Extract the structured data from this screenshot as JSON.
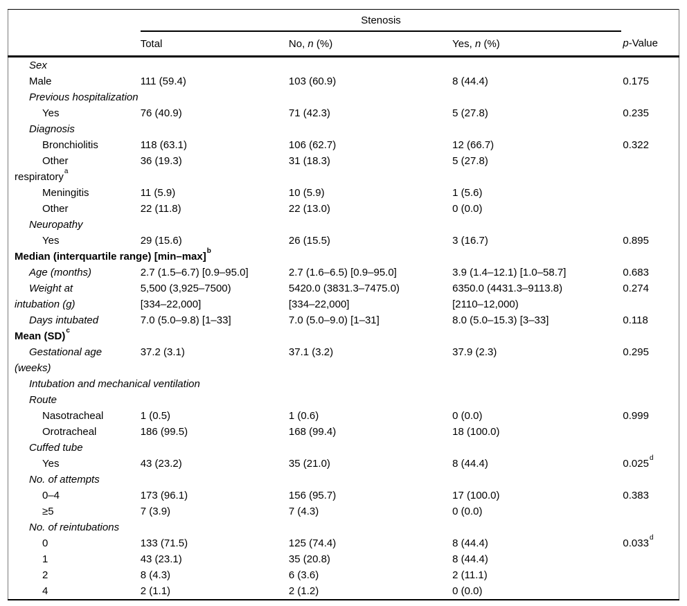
{
  "colors": {
    "background": "#ffffff",
    "text": "#000000",
    "rule": "#000000",
    "frame": "#7a7a7a"
  },
  "table": {
    "span_header": "Stenosis",
    "columns": {
      "total": "Total",
      "no_prefix": "No, ",
      "yes_prefix": "Yes, ",
      "n_var": "n",
      "pct_suffix": " (%)",
      "p_var": "p",
      "p_suffix": "-Value"
    },
    "rows": [
      {
        "label": "Sex",
        "style": "italic",
        "indent": 1
      },
      {
        "label": "Male",
        "indent": 1,
        "total": "111 (59.4)",
        "no": "103 (60.9)",
        "yes": "8 (44.4)",
        "p": "0.175"
      },
      {
        "label": "Previous hospitalization",
        "style": "italic",
        "indent": 1
      },
      {
        "label": "Yes",
        "indent": 2,
        "total": "76 (40.9)",
        "no": "71 (42.3)",
        "yes": "5 (27.8)",
        "p": "0.235"
      },
      {
        "label": "Diagnosis",
        "style": "italic",
        "indent": 1
      },
      {
        "label": "Bronchiolitis",
        "indent": 2,
        "total": "118 (63.1)",
        "no": "106 (62.7)",
        "yes": "12 (66.7)",
        "p": "0.322"
      },
      {
        "label": "Other",
        "label2": "respiratory",
        "label2_sup": "a",
        "indent": 2,
        "total": "36 (19.3)",
        "no": "31 (18.3)",
        "yes": "5 (27.8)"
      },
      {
        "label": "Meningitis",
        "indent": 2,
        "total": "11 (5.9)",
        "no": "10 (5.9)",
        "yes": "1 (5.6)"
      },
      {
        "label": "Other",
        "indent": 2,
        "total": "22 (11.8)",
        "no": "22 (13.0)",
        "yes": "0 (0.0)"
      },
      {
        "label": "Neuropathy",
        "style": "italic",
        "indent": 1
      },
      {
        "label": "Yes",
        "indent": 2,
        "total": "29 (15.6)",
        "no": "26 (15.5)",
        "yes": "3 (16.7)",
        "p": "0.895"
      },
      {
        "label": "Median (interquartile range) [min–max]",
        "label_sup": "b",
        "style": "bold",
        "indent": 0
      },
      {
        "label": "Age (months)",
        "style": "italic",
        "indent": 1,
        "total": "2.7 (1.5–6.7) [0.9–95.0]",
        "no": "2.7 (1.6–6.5) [0.9–95.0]",
        "yes": "3.9 (1.4–12.1) [1.0–58.7]",
        "p": "0.683"
      },
      {
        "label": "Weight at",
        "label2": "intubation (g)",
        "style": "italic",
        "indent": 1,
        "total": "5,500 (3,925–7500)",
        "total2": "[334–22,000]",
        "no": "5420.0 (3831.3–7475.0)",
        "no2": "[334–22,000]",
        "yes": "6350.0 (4431.3–9113.8)",
        "yes2": "[2110–12,000)",
        "p": "0.274"
      },
      {
        "label": "Days intubated",
        "style": "italic",
        "indent": 1,
        "total": "7.0 (5.0–9.8) [1–33]",
        "no": "7.0 (5.0–9.0) [1–31]",
        "yes": "8.0 (5.0–15.3) [3–33]",
        "p": "0.118"
      },
      {
        "label": "Mean (SD)",
        "label_sup": "c",
        "style": "bold",
        "indent": 0
      },
      {
        "label": "Gestational age",
        "label2": "(weeks)",
        "style": "italic",
        "indent": 1,
        "total": "37.2 (3.1)",
        "no": "37.1 (3.2)",
        "yes": "37.9 (2.3)",
        "p": "0.295"
      },
      {
        "label": "Intubation and mechanical ventilation",
        "style": "italic",
        "indent": 1
      },
      {
        "label": "Route",
        "style": "italic",
        "indent": 1
      },
      {
        "label": "Nasotracheal",
        "indent": 2,
        "total": "1 (0.5)",
        "no": "1 (0.6)",
        "yes": "0 (0.0)",
        "p": "0.999"
      },
      {
        "label": "Orotracheal",
        "indent": 2,
        "total": "186 (99.5)",
        "no": "168 (99.4)",
        "yes": "18 (100.0)"
      },
      {
        "label": "Cuffed tube",
        "style": "italic",
        "indent": 1
      },
      {
        "label": "Yes",
        "indent": 2,
        "total": "43 (23.2)",
        "no": "35 (21.0)",
        "yes": "8 (44.4)",
        "p": "0.025",
        "p_sup": "d"
      },
      {
        "label": "No. of attempts",
        "style": "italic",
        "indent": 1
      },
      {
        "label": "0–4",
        "indent": 2,
        "total": "173 (96.1)",
        "no": "156 (95.7)",
        "yes": "17 (100.0)",
        "p": "0.383"
      },
      {
        "label": "≥5",
        "indent": 2,
        "total": "7 (3.9)",
        "no": "7 (4.3)",
        "yes": "0 (0.0)"
      },
      {
        "label": "No. of reintubations",
        "style": "italic",
        "indent": 1
      },
      {
        "label": "0",
        "indent": 2,
        "total": "133 (71.5)",
        "no": "125 (74.4)",
        "yes": "8 (44.4)",
        "p": "0.033",
        "p_sup": "d"
      },
      {
        "label": "1",
        "indent": 2,
        "total": "43 (23.1)",
        "no": "35 (20.8)",
        "yes": "8 (44.4)"
      },
      {
        "label": "2",
        "indent": 2,
        "total": "8 (4.3)",
        "no": "6 (3.6)",
        "yes": "2 (11.1)"
      },
      {
        "label": "4",
        "indent": 2,
        "total": "2 (1.1)",
        "no": "2 (1.2)",
        "yes": "0 (0.0)"
      }
    ]
  }
}
